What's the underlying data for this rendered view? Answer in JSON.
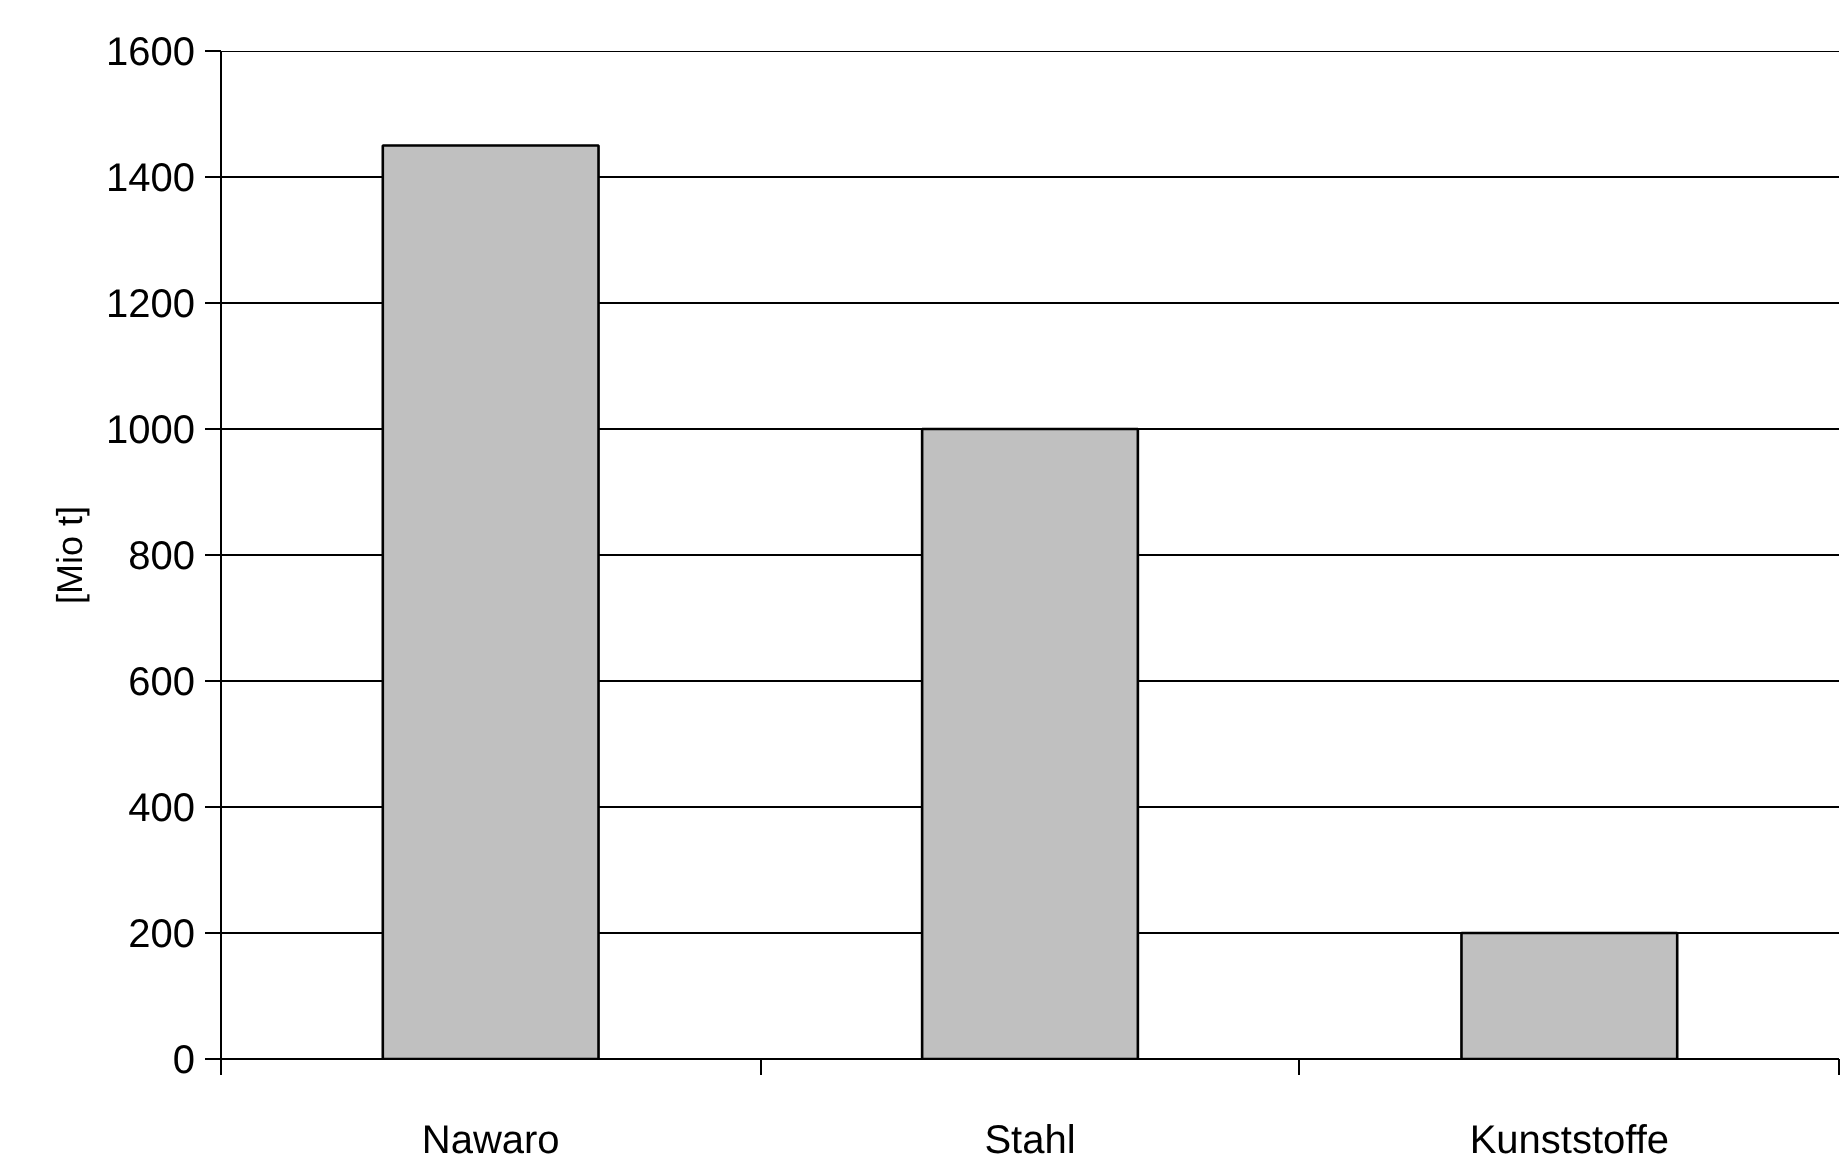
{
  "chart_data": {
    "type": "bar",
    "ylabel": "[Mio t]",
    "categories": [
      "Nawaro",
      "Stahl",
      "Kunststoffe"
    ],
    "values": [
      1450,
      1000,
      200
    ],
    "color": "#c0c0c0",
    "ylim": [
      0,
      1600
    ],
    "yticks": [
      0,
      200,
      400,
      600,
      800,
      1000,
      1200,
      1400,
      1600
    ],
    "grid": "y"
  }
}
